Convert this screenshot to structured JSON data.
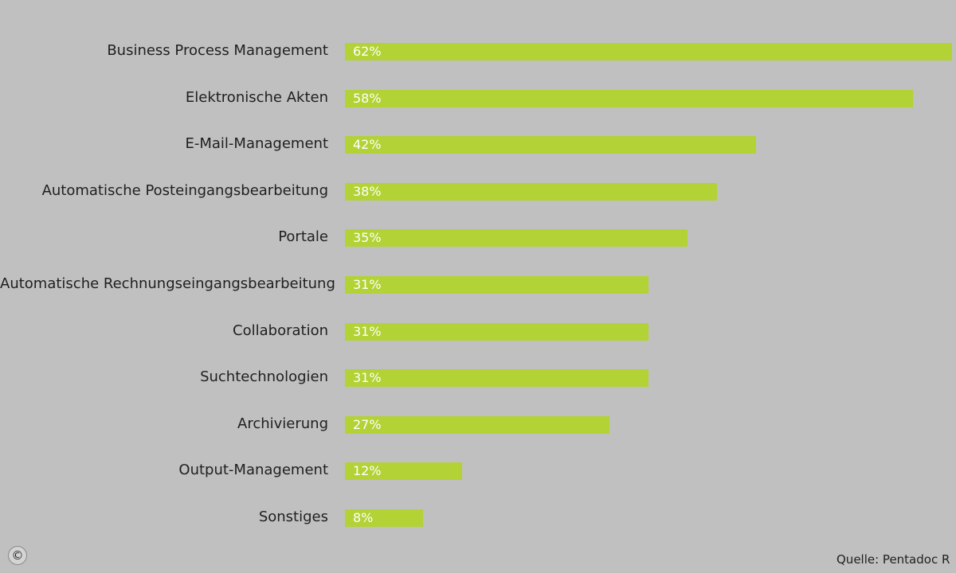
{
  "chart_data": {
    "type": "bar",
    "orientation": "horizontal",
    "categories": [
      "Business Process Management",
      "Elektronische Akten",
      "E-Mail-Management",
      "Automatische Posteingangsbearbeitung",
      "Portale",
      "Automatische Rechnungseingangsbearbeitung",
      "Collaboration",
      "Suchtechnologien",
      "Archivierung",
      "Output-Management",
      "Sonstiges"
    ],
    "values": [
      62,
      58,
      42,
      38,
      35,
      31,
      31,
      31,
      27,
      12,
      8
    ],
    "value_labels": [
      "62%",
      "58%",
      "42%",
      "38%",
      "35%",
      "31%",
      "31%",
      "31%",
      "27%",
      "12%",
      "8%"
    ],
    "bar_color": "#b2d235",
    "grid": false
  },
  "footer": {
    "copyright_symbol": "©",
    "source": "Quelle: Pentadoc R"
  }
}
